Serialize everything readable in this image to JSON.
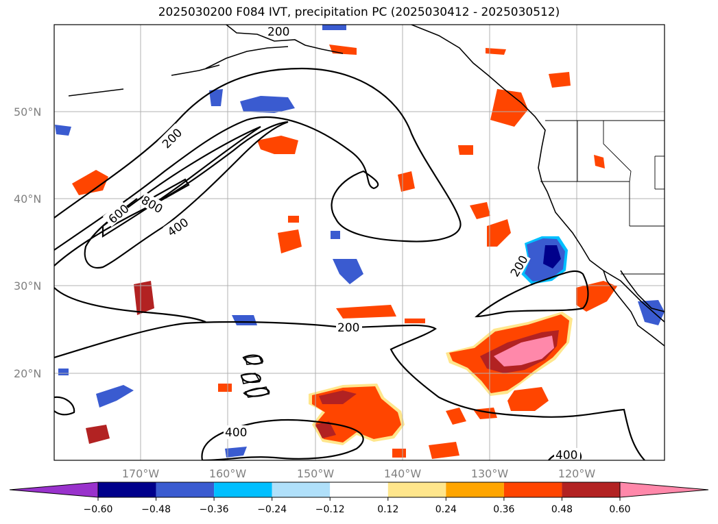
{
  "title": "2025030200 F084 IVT, precipitation PC (2025030412 - 2025030512)",
  "map": {
    "lat_labels": [
      "50°N",
      "40°N",
      "30°N",
      "20°N"
    ],
    "lon_labels": [
      "170°W",
      "160°W",
      "150°W",
      "140°W",
      "130°W",
      "120°W"
    ],
    "ivt_contour_labels": [
      "200",
      "600",
      "800",
      "400",
      "200",
      "200",
      "400",
      "400",
      "200"
    ],
    "colors": {
      "ocean": "#ffffff",
      "coast": "#000000",
      "grid": "#b0b0b0",
      "contour": "#000000"
    }
  },
  "colorbar": {
    "levels": [
      "−0.60",
      "−0.48",
      "−0.36",
      "−0.24",
      "−0.12",
      "0.12",
      "0.24",
      "0.36",
      "0.48",
      "0.60"
    ],
    "colors": [
      "#9932cc",
      "#00008b",
      "#3a5bd0",
      "#00bfff",
      "#b0e0fa",
      "#ffffff",
      "#ffe68c",
      "#ffa500",
      "#ff4500",
      "#b22222",
      "#ff88aa"
    ]
  }
}
